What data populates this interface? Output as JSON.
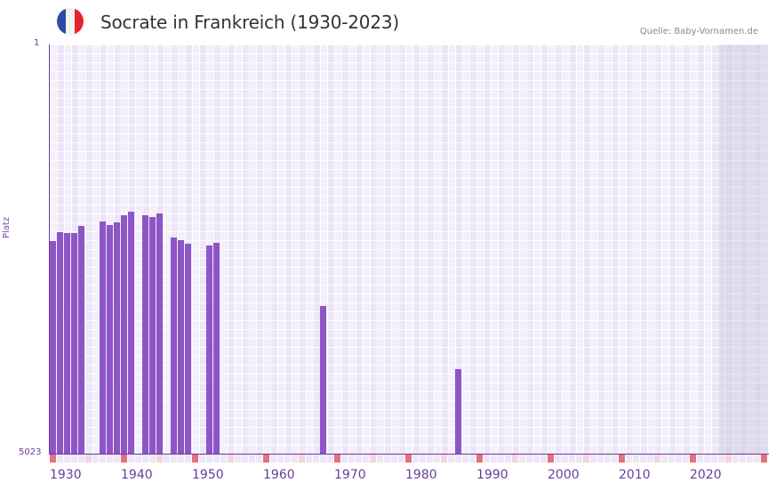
{
  "header": {
    "title": "Socrate in Frankreich (1930-2023)",
    "source": "Quelle: Baby-Vornamen.de",
    "flag_icon": "france-flag-icon",
    "flag_colors": [
      "#2b4ea2",
      "#f2f2f2",
      "#e3242b"
    ]
  },
  "axes": {
    "y_top_label": "1",
    "y_bottom_label": "5023",
    "y_title": "Platz",
    "x_labels": [
      "1930",
      "1940",
      "1950",
      "1960",
      "1970",
      "1980",
      "1990",
      "2000",
      "2010",
      "2020"
    ]
  },
  "colors": {
    "bar": "#8e55c7",
    "axis": "#6a3d9a",
    "decade_marker": "#e2727c",
    "half_decade_marker": "#f4d4dd",
    "grid_bg": "#f3effb",
    "future_shade": "#e2dcec"
  },
  "chart_data": {
    "type": "bar",
    "title": "Socrate in Frankreich (1930-2023)",
    "subtitle": "Quelle: Baby-Vornamen.de",
    "xlabel": "",
    "ylabel": "Platz",
    "y_inverted": true,
    "ylim": [
      1,
      5023
    ],
    "xlim": [
      1930,
      2030
    ],
    "data_range": [
      1930,
      2023
    ],
    "grid": true,
    "legend": null,
    "categories": [
      1930,
      1931,
      1932,
      1933,
      1934,
      1937,
      1938,
      1939,
      1940,
      1941,
      1943,
      1944,
      1945,
      1947,
      1948,
      1949,
      1952,
      1953,
      1968,
      1987
    ],
    "values": [
      2414,
      2305,
      2316,
      2316,
      2228,
      2174,
      2217,
      2185,
      2097,
      2054,
      2097,
      2119,
      2075,
      2370,
      2403,
      2447,
      2468,
      2436,
      3211,
      3986
    ],
    "series": [
      {
        "name": "Socrate",
        "points": [
          {
            "year": 1930,
            "rank": 2414
          },
          {
            "year": 1931,
            "rank": 2305
          },
          {
            "year": 1932,
            "rank": 2316
          },
          {
            "year": 1933,
            "rank": 2316
          },
          {
            "year": 1934,
            "rank": 2228
          },
          {
            "year": 1937,
            "rank": 2174
          },
          {
            "year": 1938,
            "rank": 2217
          },
          {
            "year": 1939,
            "rank": 2185
          },
          {
            "year": 1940,
            "rank": 2097
          },
          {
            "year": 1941,
            "rank": 2054
          },
          {
            "year": 1943,
            "rank": 2097
          },
          {
            "year": 1944,
            "rank": 2119
          },
          {
            "year": 1945,
            "rank": 2075
          },
          {
            "year": 1947,
            "rank": 2370
          },
          {
            "year": 1948,
            "rank": 2403
          },
          {
            "year": 1949,
            "rank": 2447
          },
          {
            "year": 1952,
            "rank": 2468
          },
          {
            "year": 1953,
            "rank": 2436
          },
          {
            "year": 1968,
            "rank": 3211
          },
          {
            "year": 1987,
            "rank": 3986
          }
        ]
      }
    ],
    "x_tick_labels": [
      "1930",
      "1940",
      "1950",
      "1960",
      "1970",
      "1980",
      "1990",
      "2000",
      "2010",
      "2020"
    ],
    "y_tick_labels": [
      "1",
      "5023"
    ]
  }
}
